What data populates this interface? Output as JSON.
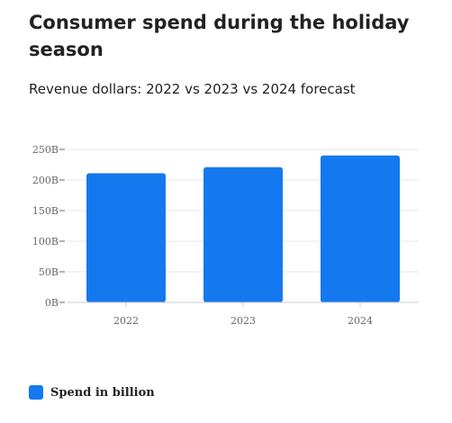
{
  "title": "Consumer spend during the holiday season",
  "subtitle": "Revenue dollars: 2022 vs 2023 vs 2024 forecast",
  "colors": {
    "bar": "#1479ee",
    "grid": "#e6e6ee",
    "axis": "#cccccc",
    "tick_text": "#666666"
  },
  "chart_data": {
    "type": "bar",
    "title": "Consumer spend during the holiday season",
    "subtitle": "Revenue dollars: 2022 vs 2023 vs 2024 forecast",
    "categories": [
      "2022",
      "2023",
      "2024"
    ],
    "series": [
      {
        "name": "Spend in billion",
        "values": [
          211,
          221,
          240
        ]
      }
    ],
    "ylim": [
      0,
      250
    ],
    "yticks": [
      0,
      50,
      100,
      150,
      200,
      250
    ],
    "ytick_labels": [
      "0B",
      "50B",
      "100B",
      "150B",
      "200B",
      "250B"
    ],
    "grid": true,
    "legend_position": "bottom-left"
  },
  "legend": {
    "label": "Spend in billion"
  }
}
